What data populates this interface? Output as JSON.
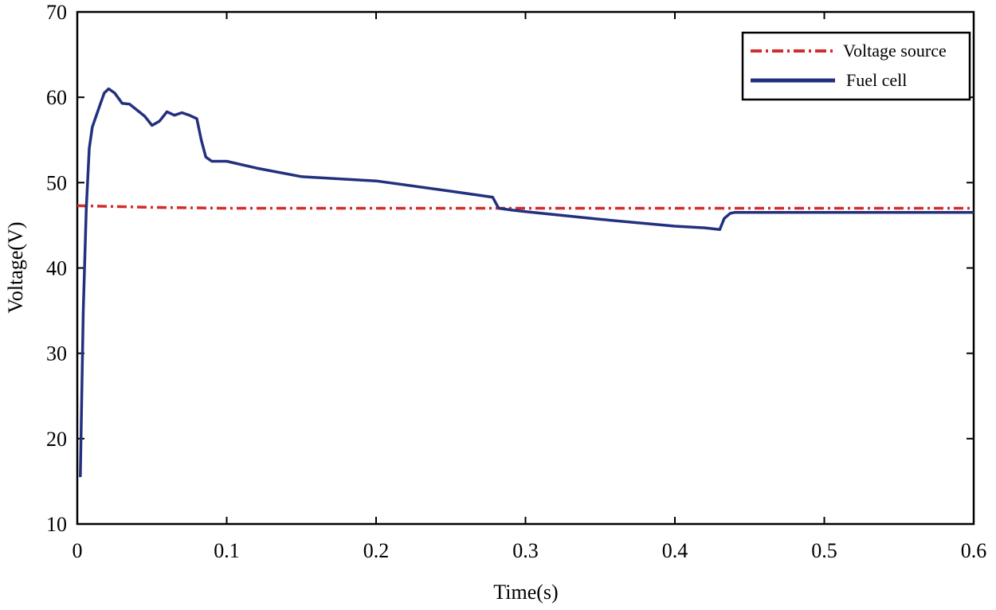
{
  "chart_data": {
    "type": "line",
    "title": "",
    "xlabel": "Time(s)",
    "ylabel": "Voltage(V)",
    "xlim": [
      0,
      0.6
    ],
    "ylim": [
      10,
      70
    ],
    "xticks": [
      0,
      0.1,
      0.2,
      0.3,
      0.4,
      0.5,
      0.6
    ],
    "yticks": [
      10,
      20,
      30,
      40,
      50,
      60,
      70
    ],
    "xtick_labels": [
      "0",
      "0.1",
      "0.2",
      "0.3",
      "0.4",
      "0.5",
      "0.6"
    ],
    "ytick_labels": [
      "10",
      "20",
      "30",
      "40",
      "50",
      "60",
      "70"
    ],
    "grid": false,
    "legend_position": "top-right",
    "series": [
      {
        "name": "Voltage source",
        "color": "#d42b2b",
        "style": "dash-dot",
        "x": [
          0,
          0.05,
          0.1,
          0.15,
          0.2,
          0.25,
          0.3,
          0.35,
          0.4,
          0.45,
          0.5,
          0.55,
          0.6
        ],
        "y": [
          47.3,
          47.1,
          47.0,
          47.0,
          47.0,
          47.0,
          47.0,
          47.0,
          47.0,
          47.0,
          47.0,
          47.0,
          47.0
        ]
      },
      {
        "name": "Fuel cell",
        "color": "#23307e",
        "style": "solid",
        "x": [
          0.002,
          0.004,
          0.006,
          0.008,
          0.01,
          0.012,
          0.015,
          0.018,
          0.021,
          0.025,
          0.03,
          0.035,
          0.04,
          0.045,
          0.05,
          0.055,
          0.06,
          0.065,
          0.07,
          0.075,
          0.08,
          0.083,
          0.086,
          0.09,
          0.1,
          0.12,
          0.15,
          0.2,
          0.25,
          0.278,
          0.282,
          0.29,
          0.3,
          0.35,
          0.4,
          0.42,
          0.43,
          0.433,
          0.437,
          0.44,
          0.5,
          0.55,
          0.6
        ],
        "y": [
          15.5,
          35.0,
          47.0,
          54.0,
          56.5,
          57.5,
          59.0,
          60.5,
          61.0,
          60.5,
          59.3,
          59.2,
          58.5,
          57.8,
          56.7,
          57.2,
          58.3,
          57.9,
          58.2,
          57.9,
          57.5,
          55.0,
          53.0,
          52.5,
          52.5,
          51.7,
          50.7,
          50.2,
          49.0,
          48.3,
          47.0,
          46.8,
          46.6,
          45.7,
          44.9,
          44.7,
          44.5,
          45.8,
          46.4,
          46.5,
          46.5,
          46.5,
          46.5
        ]
      }
    ]
  }
}
